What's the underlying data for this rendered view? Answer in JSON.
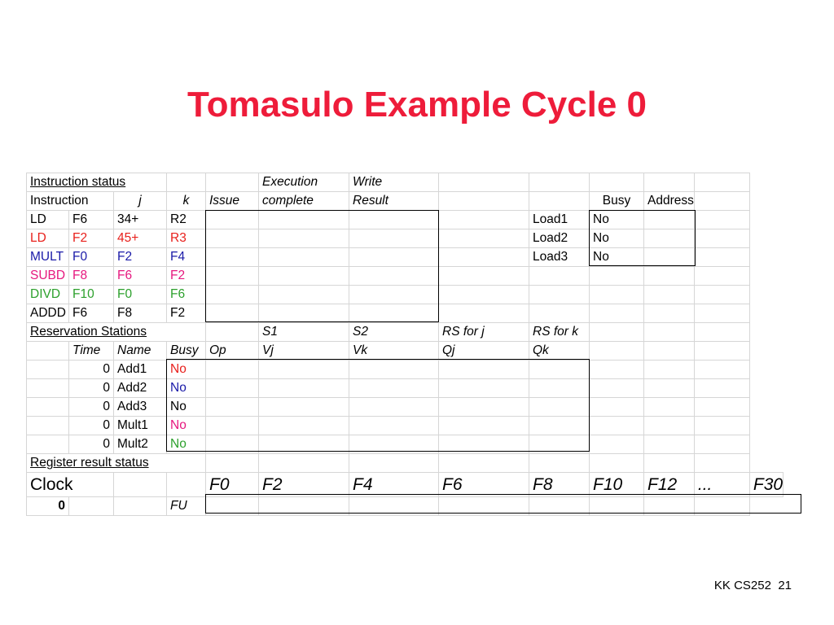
{
  "title": "Tomasulo Example Cycle 0",
  "colors": {
    "title": "#ee1c3a",
    "red": "#e8201c",
    "blue": "#1a1aa8",
    "pink": "#e6177e",
    "green": "#2ca02c"
  },
  "instruction_status": {
    "label": "Instruction status",
    "header_execution": "Execution",
    "header_write": "Write",
    "col_instruction": "Instruction",
    "col_j": "j",
    "col_k": "k",
    "col_issue": "Issue",
    "col_complete": "complete",
    "col_result": "Result",
    "rows": [
      {
        "op": "LD",
        "dest": "F6",
        "j": "34+",
        "k": "R2",
        "color": "black"
      },
      {
        "op": "LD",
        "dest": "F2",
        "j": "45+",
        "k": "R3",
        "color": "red"
      },
      {
        "op": "MULT",
        "dest": "F0",
        "j": "F2",
        "k": "F4",
        "color": "blue"
      },
      {
        "op": "SUBD",
        "dest": "F8",
        "j": "F6",
        "k": "F2",
        "color": "pink"
      },
      {
        "op": "DIVD",
        "dest": "F10",
        "j": "F0",
        "k": "F6",
        "color": "green"
      },
      {
        "op": "ADDD",
        "dest": "F6",
        "j": "F8",
        "k": "F2",
        "color": "black"
      }
    ]
  },
  "load_buffers": {
    "col_busy": "Busy",
    "col_address": "Address",
    "rows": [
      {
        "name": "Load1",
        "busy": "No"
      },
      {
        "name": "Load2",
        "busy": "No"
      },
      {
        "name": "Load3",
        "busy": "No"
      }
    ]
  },
  "reservation_stations": {
    "label": "Reservation Stations",
    "col_s1": "S1",
    "col_s2": "S2",
    "col_rsj": "RS for j",
    "col_rsk": "RS for k",
    "col_time": "Time",
    "col_name": "Name",
    "col_busy": "Busy",
    "col_op": "Op",
    "col_vj": "Vj",
    "col_vk": "Vk",
    "col_qj": "Qj",
    "col_qk": "Qk",
    "rows": [
      {
        "time": "0",
        "name": "Add1",
        "busy": "No"
      },
      {
        "time": "0",
        "name": "Add2",
        "busy": "No"
      },
      {
        "time": "0",
        "name": "Add3",
        "busy": "No"
      },
      {
        "time": "0",
        "name": "Mult1",
        "busy": "No"
      },
      {
        "time": "0",
        "name": "Mult2",
        "busy": "No"
      }
    ]
  },
  "register_status": {
    "label": "Register result status",
    "clock_label": "Clock",
    "clock_value": "0",
    "fu_label": "FU",
    "registers": [
      "F0",
      "F2",
      "F4",
      "F6",
      "F8",
      "F10",
      "F12",
      "...",
      "F30"
    ]
  },
  "footer": {
    "course": "KK CS252",
    "page": "21"
  }
}
